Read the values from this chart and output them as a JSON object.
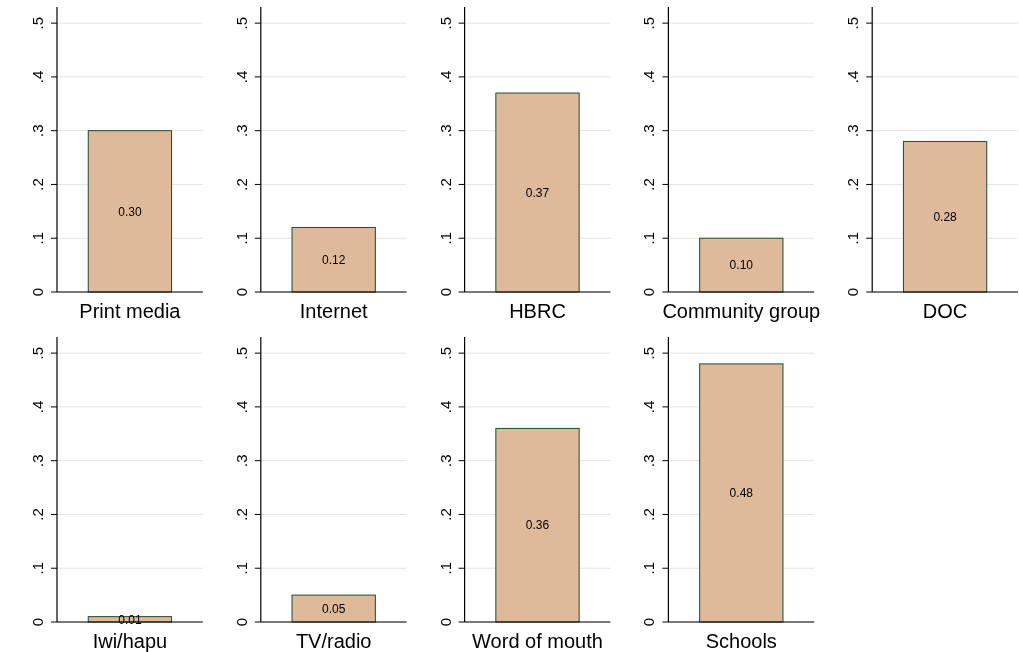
{
  "chart_data": [
    {
      "type": "bar",
      "categories": [
        "Print media"
      ],
      "values": [
        0.3
      ],
      "value_labels": [
        "0.30"
      ],
      "color": "#deb99a",
      "ylim": [
        0,
        0.53
      ],
      "yticks": [
        {
          "value": 0,
          "label": "0"
        },
        {
          "value": 0.1,
          "label": ".1"
        },
        {
          "value": 0.2,
          "label": ".2"
        },
        {
          "value": 0.3,
          "label": ".3"
        },
        {
          "value": 0.4,
          "label": ".4"
        },
        {
          "value": 0.5,
          "label": ".5"
        }
      ],
      "grid": "y"
    },
    {
      "type": "bar",
      "categories": [
        "Internet"
      ],
      "values": [
        0.12
      ],
      "value_labels": [
        "0.12"
      ],
      "color": "#deb99a",
      "ylim": [
        0,
        0.53
      ],
      "yticks": [
        {
          "value": 0,
          "label": "0"
        },
        {
          "value": 0.1,
          "label": ".1"
        },
        {
          "value": 0.2,
          "label": ".2"
        },
        {
          "value": 0.3,
          "label": ".3"
        },
        {
          "value": 0.4,
          "label": ".4"
        },
        {
          "value": 0.5,
          "label": ".5"
        }
      ],
      "grid": "y"
    },
    {
      "type": "bar",
      "categories": [
        "HBRC"
      ],
      "values": [
        0.37
      ],
      "value_labels": [
        "0.37"
      ],
      "color": "#deb99a",
      "ylim": [
        0,
        0.53
      ],
      "yticks": [
        {
          "value": 0,
          "label": "0"
        },
        {
          "value": 0.1,
          "label": ".1"
        },
        {
          "value": 0.2,
          "label": ".2"
        },
        {
          "value": 0.3,
          "label": ".3"
        },
        {
          "value": 0.4,
          "label": ".4"
        },
        {
          "value": 0.5,
          "label": ".5"
        }
      ],
      "grid": "y"
    },
    {
      "type": "bar",
      "categories": [
        "Community group"
      ],
      "values": [
        0.1
      ],
      "value_labels": [
        "0.10"
      ],
      "color": "#deb99a",
      "ylim": [
        0,
        0.53
      ],
      "yticks": [
        {
          "value": 0,
          "label": "0"
        },
        {
          "value": 0.1,
          "label": ".1"
        },
        {
          "value": 0.2,
          "label": ".2"
        },
        {
          "value": 0.3,
          "label": ".3"
        },
        {
          "value": 0.4,
          "label": ".4"
        },
        {
          "value": 0.5,
          "label": ".5"
        }
      ],
      "grid": "y"
    },
    {
      "type": "bar",
      "categories": [
        "DOC"
      ],
      "values": [
        0.28
      ],
      "value_labels": [
        "0.28"
      ],
      "color": "#deb99a",
      "ylim": [
        0,
        0.53
      ],
      "yticks": [
        {
          "value": 0,
          "label": "0"
        },
        {
          "value": 0.1,
          "label": ".1"
        },
        {
          "value": 0.2,
          "label": ".2"
        },
        {
          "value": 0.3,
          "label": ".3"
        },
        {
          "value": 0.4,
          "label": ".4"
        },
        {
          "value": 0.5,
          "label": ".5"
        }
      ],
      "grid": "y"
    },
    {
      "type": "bar",
      "categories": [
        "Iwi/hapu"
      ],
      "values": [
        0.01
      ],
      "value_labels": [
        "0.01"
      ],
      "color": "#deb99a",
      "ylim": [
        0,
        0.53
      ],
      "yticks": [
        {
          "value": 0,
          "label": "0"
        },
        {
          "value": 0.1,
          "label": ".1"
        },
        {
          "value": 0.2,
          "label": ".2"
        },
        {
          "value": 0.3,
          "label": ".3"
        },
        {
          "value": 0.4,
          "label": ".4"
        },
        {
          "value": 0.5,
          "label": ".5"
        }
      ],
      "grid": "y"
    },
    {
      "type": "bar",
      "categories": [
        "TV/radio"
      ],
      "values": [
        0.05
      ],
      "value_labels": [
        "0.05"
      ],
      "color": "#deb99a",
      "ylim": [
        0,
        0.53
      ],
      "yticks": [
        {
          "value": 0,
          "label": "0"
        },
        {
          "value": 0.1,
          "label": ".1"
        },
        {
          "value": 0.2,
          "label": ".2"
        },
        {
          "value": 0.3,
          "label": ".3"
        },
        {
          "value": 0.4,
          "label": ".4"
        },
        {
          "value": 0.5,
          "label": ".5"
        }
      ],
      "grid": "y"
    },
    {
      "type": "bar",
      "categories": [
        "Word of mouth"
      ],
      "values": [
        0.36
      ],
      "value_labels": [
        "0.36"
      ],
      "color": "#deb99a",
      "ylim": [
        0,
        0.53
      ],
      "yticks": [
        {
          "value": 0,
          "label": "0"
        },
        {
          "value": 0.1,
          "label": ".1"
        },
        {
          "value": 0.2,
          "label": ".2"
        },
        {
          "value": 0.3,
          "label": ".3"
        },
        {
          "value": 0.4,
          "label": ".4"
        },
        {
          "value": 0.5,
          "label": ".5"
        }
      ],
      "grid": "y"
    },
    {
      "type": "bar",
      "categories": [
        "Schools"
      ],
      "values": [
        0.48
      ],
      "value_labels": [
        "0.48"
      ],
      "color": "#deb99a",
      "ylim": [
        0,
        0.53
      ],
      "yticks": [
        {
          "value": 0,
          "label": "0"
        },
        {
          "value": 0.1,
          "label": ".1"
        },
        {
          "value": 0.2,
          "label": ".2"
        },
        {
          "value": 0.3,
          "label": ".3"
        },
        {
          "value": 0.4,
          "label": ".4"
        },
        {
          "value": 0.5,
          "label": ".5"
        }
      ],
      "grid": "y"
    }
  ]
}
